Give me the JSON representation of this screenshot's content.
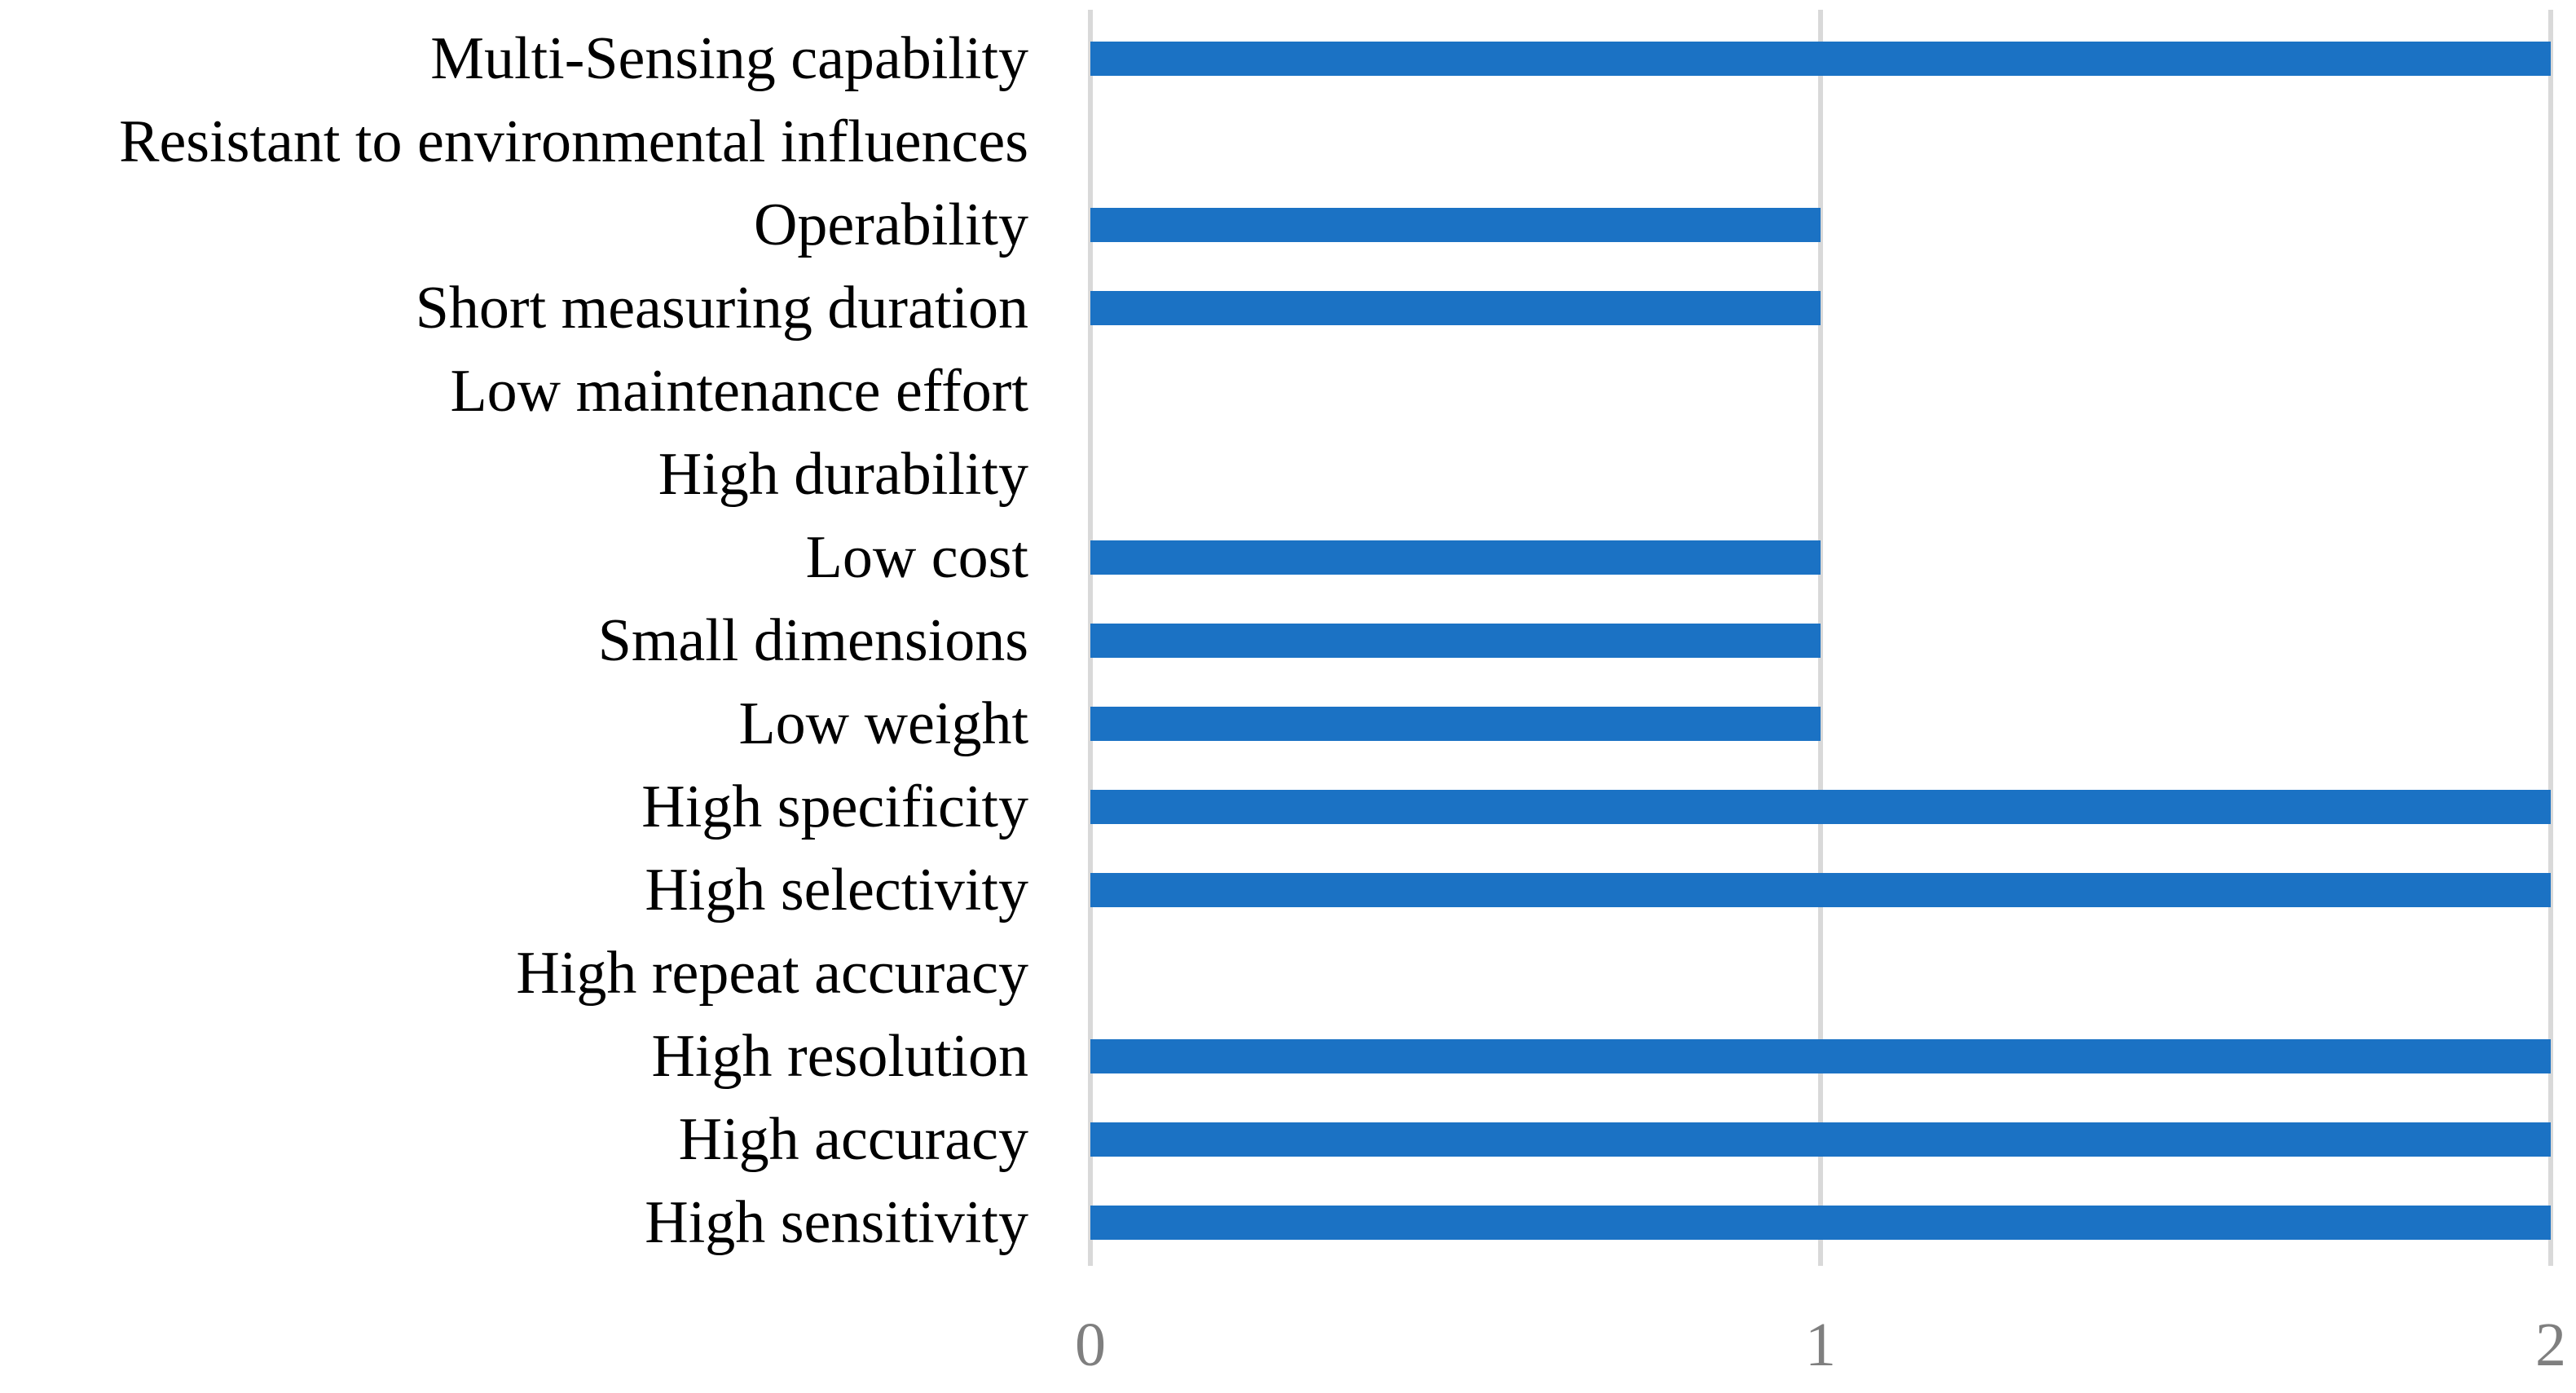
{
  "chart_data": {
    "type": "bar",
    "orientation": "horizontal",
    "title": "",
    "xlabel": "",
    "ylabel": "",
    "categories": [
      "Multi-Sensing capability",
      "Resistant to environmental influences",
      "Operability",
      "Short measuring duration",
      "Low maintenance effort",
      "High durability",
      "Low cost",
      "Small dimensions",
      "Low weight",
      "High specificity",
      "High selectivity",
      "High repeat accuracy",
      "High resolution",
      "High accuracy",
      "High sensitivity"
    ],
    "values": [
      2,
      0,
      1,
      1,
      0,
      0,
      1,
      1,
      1,
      2,
      2,
      0,
      2,
      2,
      2
    ],
    "xlim": [
      0,
      2
    ],
    "x_ticks": [
      "0",
      "1",
      "2"
    ],
    "x_tick_values": [
      0,
      1,
      2
    ],
    "grid": "vertical-only",
    "legend": "none",
    "colors": {
      "bar": "#1B72C4",
      "gridline": "#D9D9D9",
      "tick_text": "#7F7F7F",
      "label_text": "#000000",
      "background": "#FFFFFF"
    }
  }
}
